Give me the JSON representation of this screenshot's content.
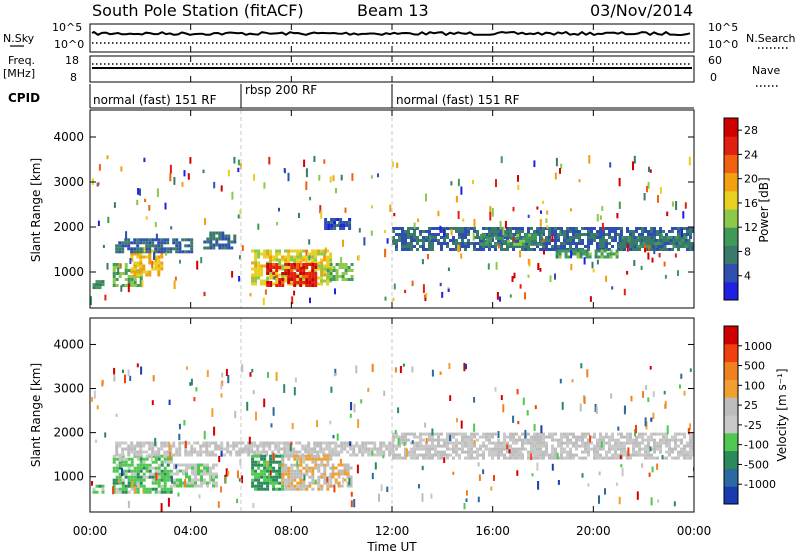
{
  "header": {
    "station": "South Pole Station (fitACF)",
    "beam": "Beam 13",
    "date": "03/Nov/2014"
  },
  "strips": {
    "nsky_label": "N.Sky",
    "nsky_ticks": [
      "10^5",
      "10^0"
    ],
    "nsearch_label": "N.Search",
    "nsearch_ticks": [
      "10^5",
      "10^0"
    ],
    "freq_label": "Freq.",
    "freq_unit": "[MHz]",
    "freq_ticks": [
      "18",
      "8"
    ],
    "nave_label": "Nave",
    "nave_ticks": [
      "60",
      "0"
    ],
    "cpid_label": "CPID",
    "cpid_segments": [
      {
        "label": "normal (fast) 151 RF",
        "start_h": 0,
        "end_h": 6
      },
      {
        "label": "rbsp 200 RF",
        "start_h": 6,
        "end_h": 12
      },
      {
        "label": "normal (fast) 151 RF",
        "start_h": 12,
        "end_h": 24
      }
    ]
  },
  "colors": {
    "power_scale": [
      "#2020e0",
      "#2f4fb0",
      "#3a7a6a",
      "#3f9a5a",
      "#8cc84a",
      "#e8d020",
      "#f0a010",
      "#f06010",
      "#e02010",
      "#d00000"
    ],
    "velocity_scale": [
      "#d00000",
      "#f04010",
      "#f08020",
      "#f0a030",
      "#bdbdbd",
      "#c8c8c8",
      "#50c850",
      "#2a8a5a",
      "#2a6aa0",
      "#1a3ab0"
    ]
  },
  "chart_data": [
    {
      "type": "heatmap",
      "title": "",
      "xlabel": "Time UT",
      "ylabel": "Slant Range [km]",
      "xlim": [
        0,
        24
      ],
      "ylim": [
        200,
        4600
      ],
      "x_ticks": [
        "00:00",
        "04:00",
        "08:00",
        "12:00",
        "16:00",
        "20:00",
        "00:00"
      ],
      "y_ticks": [
        "1000",
        "2000",
        "3000",
        "4000"
      ],
      "colorbar_label": "Power [dB]",
      "colorbar_ticks": [
        "4",
        "8",
        "12",
        "16",
        "20",
        "24",
        "28"
      ],
      "clim": [
        0,
        30
      ],
      "regions": [
        {
          "t0": 0.1,
          "t1": 0.5,
          "r0": 640,
          "r1": 820,
          "value": 8
        },
        {
          "t0": 0.9,
          "t1": 2.0,
          "r0": 700,
          "r1": 1200,
          "value": 12
        },
        {
          "t0": 1.6,
          "t1": 2.8,
          "r0": 900,
          "r1": 1500,
          "value": 18
        },
        {
          "t0": 1.0,
          "t1": 4.0,
          "r0": 1450,
          "r1": 1750,
          "value": 6
        },
        {
          "t0": 4.5,
          "t1": 5.8,
          "r0": 1550,
          "r1": 1900,
          "value": 6
        },
        {
          "t0": 6.4,
          "t1": 9.6,
          "r0": 700,
          "r1": 1500,
          "value": 16
        },
        {
          "t0": 7.0,
          "t1": 9.0,
          "r0": 700,
          "r1": 1200,
          "value": 26
        },
        {
          "t0": 9.4,
          "t1": 10.4,
          "r0": 800,
          "r1": 1200,
          "value": 12
        },
        {
          "t0": 9.3,
          "t1": 10.3,
          "r0": 1950,
          "r1": 2200,
          "value": 4
        },
        {
          "t0": 12.0,
          "t1": 24.0,
          "r0": 1500,
          "r1": 2000,
          "value": 6
        },
        {
          "t0": 15.5,
          "t1": 18.0,
          "r0": 1600,
          "r1": 1850,
          "value": 10
        },
        {
          "t0": 18.5,
          "t1": 21.0,
          "r0": 1300,
          "r1": 1500,
          "value": 10
        },
        {
          "t0": 21.0,
          "t1": 24.0,
          "r0": 1550,
          "r1": 1800,
          "value": 8
        }
      ]
    },
    {
      "type": "heatmap",
      "title": "",
      "xlabel": "Time UT",
      "ylabel": "Slant Range [km]",
      "xlim": [
        0,
        24
      ],
      "ylim": [
        200,
        4600
      ],
      "x_ticks": [
        "00:00",
        "04:00",
        "08:00",
        "12:00",
        "16:00",
        "20:00",
        "00:00"
      ],
      "y_ticks": [
        "1000",
        "2000",
        "3000",
        "4000"
      ],
      "colorbar_label": "Velocity [m s⁻¹]",
      "colorbar_ticks": [
        "1000",
        "500",
        "100",
        "25",
        "-25",
        "-100",
        "-500",
        "-1000"
      ],
      "clim": [
        -1000,
        1000
      ],
      "regions": [
        {
          "t0": 0.1,
          "t1": 0.5,
          "r0": 640,
          "r1": 820,
          "value": -300
        },
        {
          "t0": 0.9,
          "t1": 3.2,
          "r0": 650,
          "r1": 1500,
          "value": -300
        },
        {
          "t0": 3.3,
          "t1": 5.0,
          "r0": 800,
          "r1": 1300,
          "value": -200
        },
        {
          "t0": 1.0,
          "t1": 12.0,
          "r0": 1500,
          "r1": 1800,
          "value": 0
        },
        {
          "t0": 6.4,
          "t1": 7.6,
          "r0": 700,
          "r1": 1500,
          "value": -400
        },
        {
          "t0": 7.6,
          "t1": 9.6,
          "r0": 700,
          "r1": 1500,
          "value": 150
        },
        {
          "t0": 9.6,
          "t1": 10.4,
          "r0": 800,
          "r1": 1300,
          "value": 200
        },
        {
          "t0": 12.0,
          "t1": 24.0,
          "r0": 1450,
          "r1": 2000,
          "value": 0
        }
      ]
    }
  ]
}
